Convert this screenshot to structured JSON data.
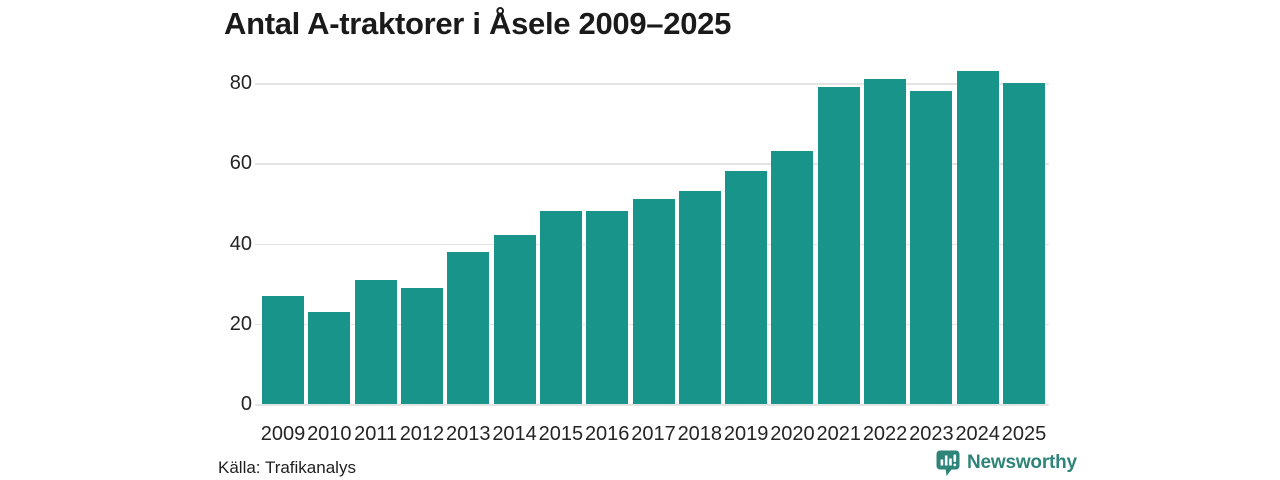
{
  "title": "Antal A-traktorer i Åsele 2009–2025",
  "footer": {
    "source": "Källa: Trafikanalys",
    "brand": "Newsworthy"
  },
  "icons": {
    "brand_icon": "newsworthy-speech-bubble-bar-chart-icon"
  },
  "colors": {
    "bar": "#18948a",
    "grid": "#e4e4e4",
    "title_text": "#1a1a1a",
    "axis_text": "#242424",
    "source_text": "#1f1f1f",
    "brand": "#2f8479",
    "background": "#ffffff"
  },
  "chart_data": {
    "type": "bar",
    "title": "Antal A-traktorer i Åsele 2009–2025",
    "categories": [
      "2009",
      "2010",
      "2011",
      "2012",
      "2013",
      "2014",
      "2015",
      "2016",
      "2017",
      "2018",
      "2019",
      "2020",
      "2021",
      "2022",
      "2023",
      "2024",
      "2025"
    ],
    "values": [
      27,
      23,
      31,
      29,
      38,
      42,
      48,
      48,
      51,
      53,
      58,
      63,
      79,
      81,
      78,
      83,
      80
    ],
    "xlabel": "",
    "ylabel": "",
    "ylim": [
      0,
      85
    ],
    "yticks": [
      0,
      20,
      40,
      60,
      80
    ],
    "grid": true,
    "legend_position": "none",
    "source": "Källa: Trafikanalys"
  }
}
